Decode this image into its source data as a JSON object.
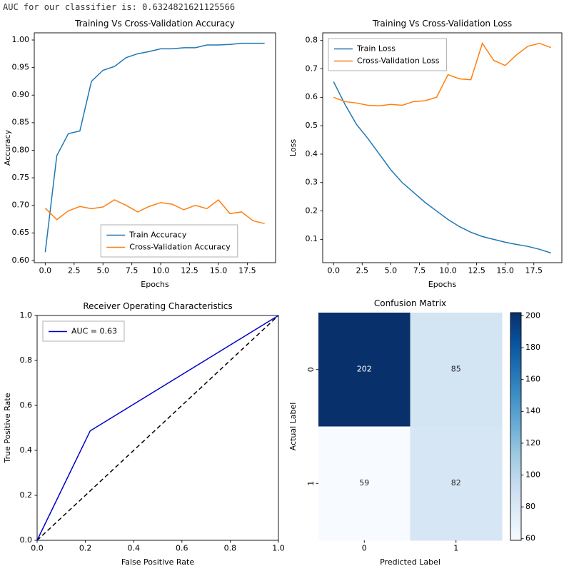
{
  "header": {
    "auc_text": "AUC for our classifier is: 0.6324821621125566"
  },
  "chart_data": [
    {
      "id": "accuracy",
      "type": "line",
      "title": "Training Vs Cross-Validation Accuracy",
      "xlabel": "Epochs",
      "ylabel": "Accuracy",
      "xlim": [
        -0.95,
        19.95
      ],
      "ylim": [
        0.596,
        1.013
      ],
      "xticks": [
        0,
        2.5,
        5,
        7.5,
        10,
        12.5,
        15,
        17.5
      ],
      "xtick_labels": [
        "0.0",
        "2.5",
        "5.0",
        "7.5",
        "10.0",
        "12.5",
        "15.0",
        "17.5"
      ],
      "yticks": [
        0.6,
        0.65,
        0.7,
        0.75,
        0.8,
        0.85,
        0.9,
        0.95,
        1.0
      ],
      "ytick_labels": [
        "0.60",
        "0.65",
        "0.70",
        "0.75",
        "0.80",
        "0.85",
        "0.90",
        "0.95",
        "1.00"
      ],
      "legend": "lower-center",
      "series": [
        {
          "name": "Train Accuracy",
          "color": "#1f77b4",
          "values": [
            0.615,
            0.79,
            0.83,
            0.835,
            0.925,
            0.945,
            0.952,
            0.968,
            0.975,
            0.979,
            0.984,
            0.984,
            0.986,
            0.986,
            0.991,
            0.991,
            0.992,
            0.994,
            0.994,
            0.994
          ]
        },
        {
          "name": "Cross-Validation Accuracy",
          "color": "#ff7f0e",
          "values": [
            0.695,
            0.674,
            0.69,
            0.698,
            0.694,
            0.697,
            0.71,
            0.7,
            0.688,
            0.698,
            0.705,
            0.702,
            0.692,
            0.7,
            0.694,
            0.71,
            0.685,
            0.688,
            0.672,
            0.667
          ]
        }
      ]
    },
    {
      "id": "loss",
      "type": "line",
      "title": "Training Vs Cross-Validation Loss",
      "xlabel": "Epochs",
      "ylabel": "Loss",
      "xlim": [
        -0.95,
        19.95
      ],
      "ylim": [
        0.018,
        0.827
      ],
      "xticks": [
        0,
        2.5,
        5,
        7.5,
        10,
        12.5,
        15,
        17.5
      ],
      "xtick_labels": [
        "0.0",
        "2.5",
        "5.0",
        "7.5",
        "10.0",
        "12.5",
        "15.0",
        "17.5"
      ],
      "yticks": [
        0.1,
        0.2,
        0.3,
        0.4,
        0.5,
        0.6,
        0.7,
        0.8
      ],
      "ytick_labels": [
        "0.1",
        "0.2",
        "0.3",
        "0.4",
        "0.5",
        "0.6",
        "0.7",
        "0.8"
      ],
      "legend": "upper-left",
      "series": [
        {
          "name": "Train Loss",
          "color": "#1f77b4",
          "values": [
            0.655,
            0.575,
            0.505,
            0.455,
            0.4,
            0.345,
            0.3,
            0.265,
            0.23,
            0.2,
            0.17,
            0.145,
            0.125,
            0.11,
            0.1,
            0.09,
            0.082,
            0.075,
            0.065,
            0.052
          ]
        },
        {
          "name": "Cross-Validation Loss",
          "color": "#ff7f0e",
          "values": [
            0.6,
            0.585,
            0.58,
            0.572,
            0.57,
            0.575,
            0.572,
            0.585,
            0.588,
            0.6,
            0.68,
            0.665,
            0.662,
            0.79,
            0.73,
            0.712,
            0.75,
            0.78,
            0.79,
            0.775
          ]
        }
      ]
    },
    {
      "id": "roc",
      "type": "line",
      "title": "Receiver Operating Characteristics",
      "xlabel": "False Positive Rate",
      "ylabel": "True Positive Rate",
      "xlim": [
        0,
        1
      ],
      "ylim": [
        0,
        1
      ],
      "xticks": [
        0,
        0.2,
        0.4,
        0.6,
        0.8,
        1.0
      ],
      "xtick_labels": [
        "0.0",
        "0.2",
        "0.4",
        "0.6",
        "0.8",
        "1.0"
      ],
      "yticks": [
        0,
        0.2,
        0.4,
        0.6,
        0.8,
        1.0
      ],
      "ytick_labels": [
        "0.0",
        "0.2",
        "0.4",
        "0.6",
        "0.8",
        "1.0"
      ],
      "legend": "upper-left",
      "series": [
        {
          "color": "#000000",
          "dash": true,
          "x": [
            0,
            1
          ],
          "values": [
            0,
            1
          ]
        },
        {
          "name": "AUC = 0.63",
          "color": "#0000cc",
          "x": [
            0,
            0.22,
            1
          ],
          "values": [
            0,
            0.487,
            1
          ]
        }
      ]
    },
    {
      "id": "confusion",
      "type": "heatmap",
      "title": "Confusion Matrix",
      "xlabel": "Predicted Label",
      "ylabel": "Actual Label",
      "values": [
        [
          202,
          85
        ],
        [
          59,
          82
        ]
      ],
      "xtick_labels": [
        "0",
        "1"
      ],
      "ytick_labels": [
        "0",
        "1"
      ],
      "vmin": 59,
      "vmax": 202,
      "cbar_ticks": [
        60,
        80,
        100,
        120,
        140,
        160,
        180,
        200
      ]
    }
  ]
}
